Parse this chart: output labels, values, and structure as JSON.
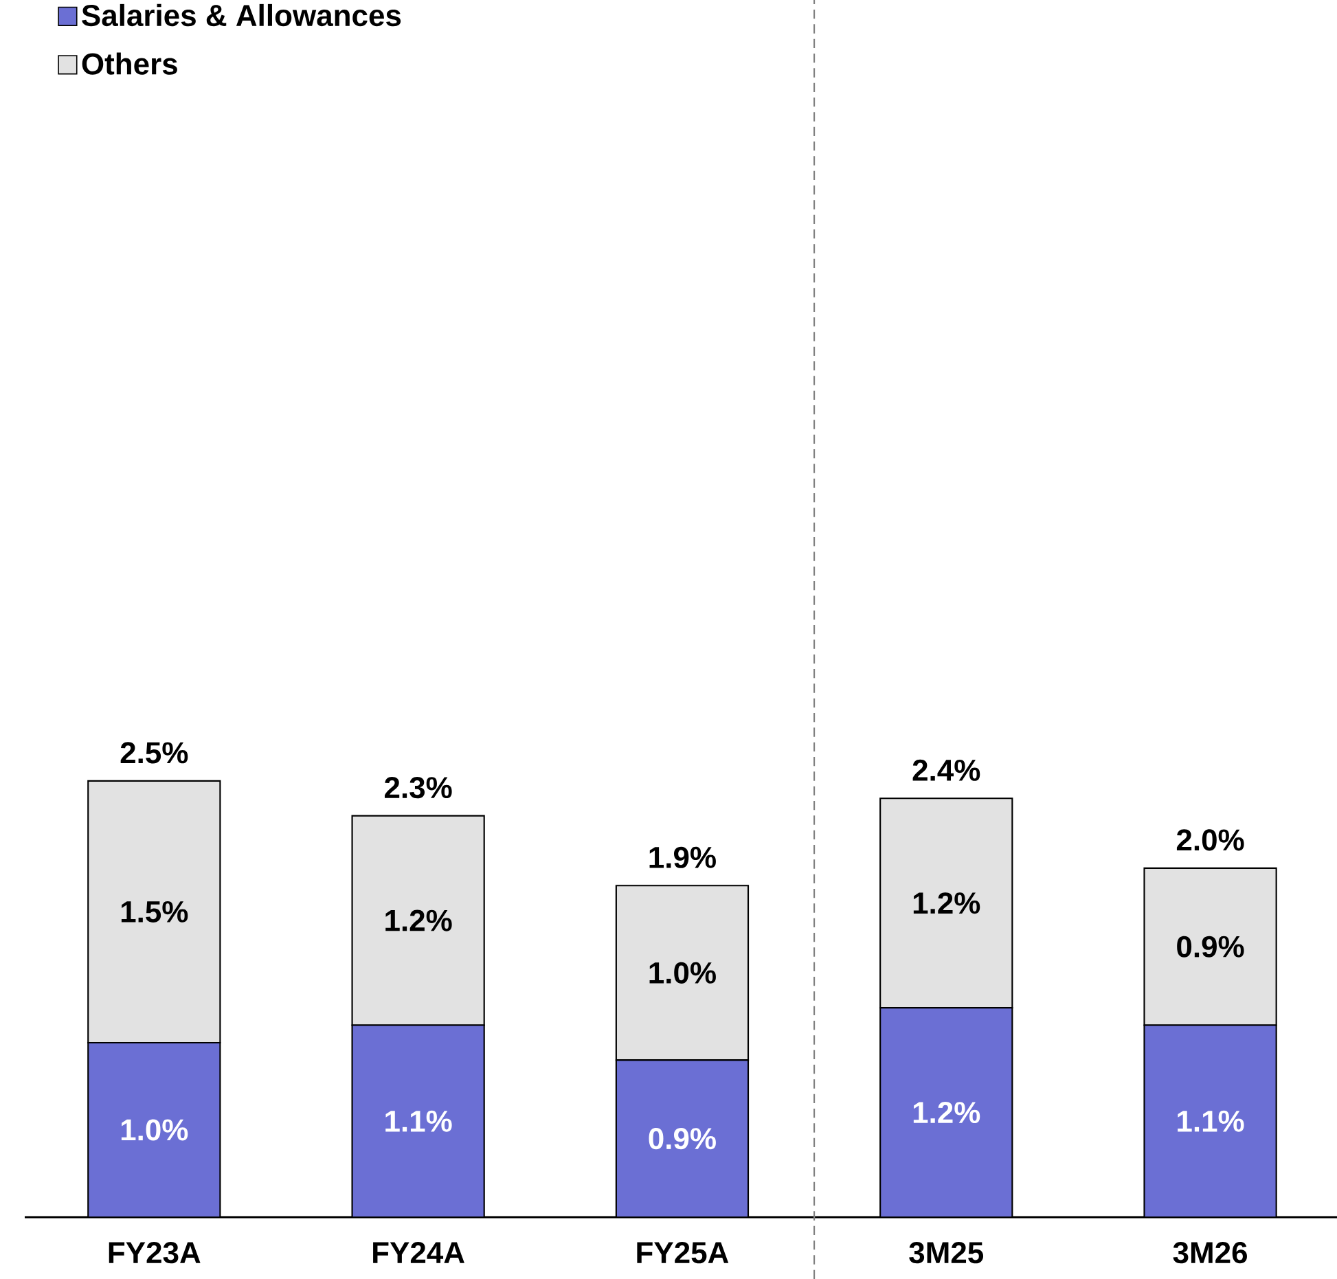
{
  "chart_data": {
    "type": "bar",
    "stacked": true,
    "categories": [
      "FY23A",
      "FY24A",
      "FY25A",
      "3M25",
      "3M26"
    ],
    "series": [
      {
        "name": "Salaries & Allowances",
        "color": "#6b6fd4",
        "values": [
          1.0,
          1.1,
          0.9,
          1.2,
          1.1
        ],
        "value_labels": [
          "1.0%",
          "1.1%",
          "0.9%",
          "1.2%",
          "1.1%"
        ]
      },
      {
        "name": "Others",
        "color": "#e2e2e2",
        "values": [
          1.5,
          1.2,
          1.0,
          1.2,
          0.9
        ],
        "value_labels": [
          "1.5%",
          "1.2%",
          "1.0%",
          "1.2%",
          "0.9%"
        ]
      }
    ],
    "totals": [
      "2.5%",
      "2.3%",
      "1.9%",
      "2.4%",
      "2.0%"
    ],
    "legend": "top left"
  }
}
